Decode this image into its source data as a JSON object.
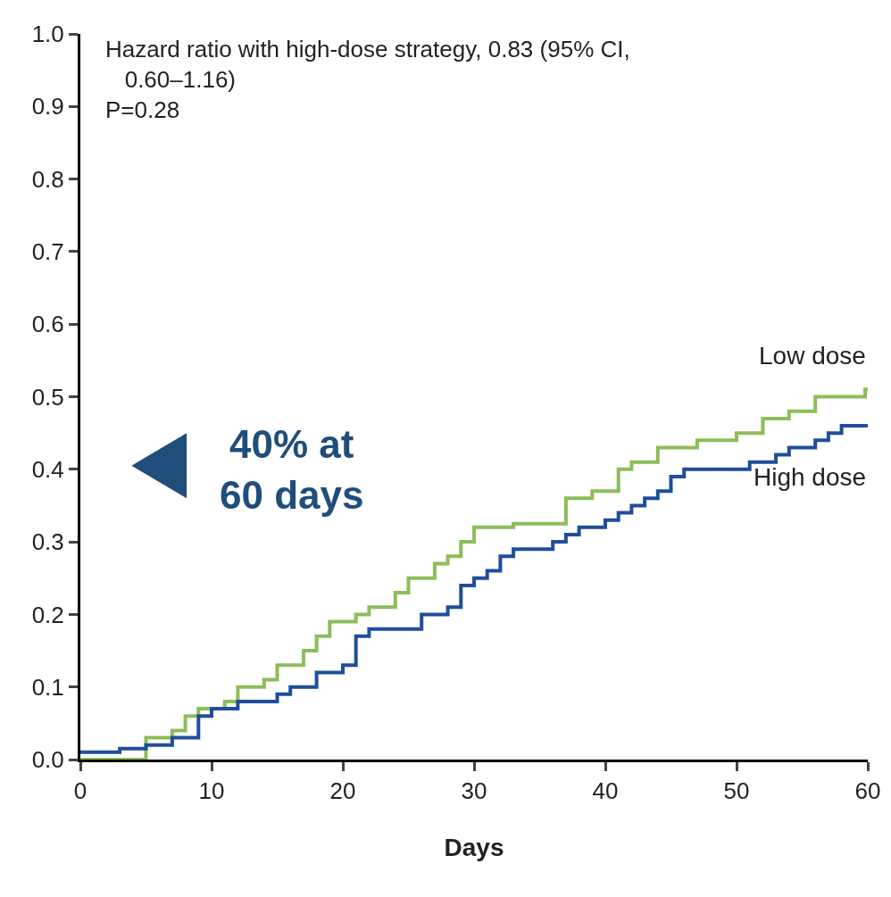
{
  "chart_data": {
    "type": "step",
    "xlabel": "Days",
    "annotations": [
      "Hazard ratio with high-dose strategy, 0.83 (95% CI,\n   0.60–1.16)\nP=0.28",
      "40% at\n60 days"
    ],
    "series": [
      {
        "name": "Low dose",
        "color": "#8cbd5a",
        "x": [
          0,
          4,
          5,
          7,
          8,
          9,
          11,
          12,
          14,
          15,
          17,
          18,
          19,
          21,
          22,
          24,
          25,
          27,
          28,
          29,
          30,
          33,
          37,
          39,
          41,
          42,
          44,
          47,
          50,
          52,
          54,
          56,
          59.8,
          60
        ],
        "values": [
          0.0,
          0.0,
          0.03,
          0.04,
          0.06,
          0.07,
          0.08,
          0.1,
          0.11,
          0.13,
          0.15,
          0.17,
          0.19,
          0.2,
          0.21,
          0.23,
          0.25,
          0.27,
          0.28,
          0.3,
          0.32,
          0.325,
          0.36,
          0.37,
          0.4,
          0.41,
          0.43,
          0.44,
          0.45,
          0.47,
          0.48,
          0.5,
          0.51,
          0.51
        ]
      },
      {
        "name": "High dose",
        "color": "#1f4e9a",
        "x": [
          0,
          3,
          5,
          7,
          9,
          10,
          12,
          15,
          16,
          18,
          20,
          21,
          22,
          26,
          28,
          29,
          30,
          31,
          32,
          33,
          36,
          37,
          38,
          40,
          41,
          42,
          43,
          44,
          45,
          46,
          50,
          51,
          53,
          54,
          56,
          57,
          58,
          60
        ],
        "values": [
          0.01,
          0.015,
          0.02,
          0.03,
          0.06,
          0.07,
          0.08,
          0.09,
          0.1,
          0.12,
          0.13,
          0.17,
          0.18,
          0.2,
          0.21,
          0.24,
          0.25,
          0.26,
          0.28,
          0.29,
          0.3,
          0.31,
          0.32,
          0.33,
          0.34,
          0.35,
          0.36,
          0.37,
          0.39,
          0.4,
          0.4,
          0.41,
          0.42,
          0.43,
          0.44,
          0.45,
          0.46,
          0.46
        ]
      }
    ],
    "xlim": [
      0,
      60
    ],
    "xticks": [
      0,
      10,
      20,
      30,
      40,
      50,
      60
    ],
    "ylim": [
      0,
      1
    ],
    "yticks": [
      {
        "value": 0,
        "label": "0.0"
      },
      0.1,
      0.2,
      0.3,
      0.4,
      0.5,
      0.6,
      0.7,
      0.8,
      0.9,
      {
        "value": 1,
        "label": "1.0"
      }
    ],
    "legend": false
  }
}
